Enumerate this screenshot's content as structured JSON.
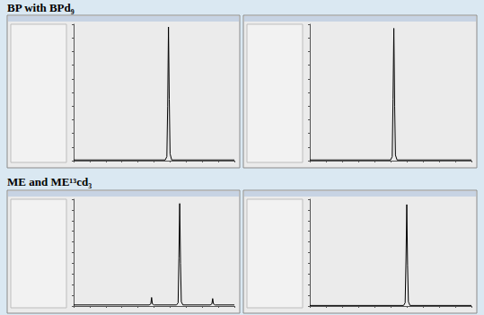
{
  "chart_data": [
    {
      "type": "line",
      "title": "BP with BPd₉",
      "color": "#000000",
      "grid": false,
      "tick_labels": false,
      "x": [
        0,
        5.7,
        5.8,
        5.85,
        5.9,
        5.95,
        6.0,
        6.1,
        10
      ],
      "values": [
        0.5,
        0.5,
        3,
        40,
        98,
        45,
        5,
        0.5,
        0.5
      ],
      "xlim": [
        0,
        10
      ],
      "xticks": [
        0,
        1,
        2,
        3,
        4,
        5,
        6,
        7,
        8,
        9,
        10
      ],
      "ylim": [
        0,
        100
      ],
      "yticks": [
        0,
        10,
        20,
        30,
        40,
        50,
        60,
        70,
        80,
        90,
        100
      ]
    },
    {
      "type": "line",
      "color": "#000000",
      "grid": false,
      "tick_labels": false,
      "x": [
        0,
        5.0,
        5.1,
        5.15,
        5.2,
        5.25,
        5.3,
        5.4,
        10
      ],
      "values": [
        0.5,
        0.5,
        3,
        45,
        97,
        40,
        4,
        0.5,
        0.5
      ],
      "xlim": [
        0,
        10
      ],
      "xticks": [
        0,
        1,
        2,
        3,
        4,
        5,
        6,
        7,
        8,
        9,
        10
      ],
      "ylim": [
        0,
        100
      ],
      "yticks": [
        0,
        10,
        20,
        30,
        40,
        50,
        60,
        70,
        80,
        90,
        100
      ]
    },
    {
      "type": "line",
      "title": "ME and ME¹³cd₃",
      "color": "#000000",
      "grid": false,
      "tick_labels": false,
      "x": [
        0,
        4.7,
        4.8,
        4.85,
        4.9,
        5.0,
        6.4,
        6.5,
        6.55,
        6.6,
        6.65,
        6.7,
        6.8,
        8.5,
        8.6,
        8.65,
        8.7,
        8.8,
        10
      ],
      "values": [
        1,
        1,
        2,
        8,
        2,
        1,
        1,
        3,
        45,
        96,
        40,
        4,
        1,
        1,
        2,
        7,
        2,
        1,
        1
      ],
      "xlim": [
        0,
        10
      ],
      "xticks": [
        0,
        1,
        2,
        3,
        4,
        5,
        6,
        7,
        8,
        9,
        10
      ],
      "ylim": [
        0,
        100
      ],
      "yticks": [
        0,
        10,
        20,
        30,
        40,
        50,
        60,
        70,
        80,
        90,
        100
      ]
    },
    {
      "type": "line",
      "color": "#000000",
      "grid": false,
      "tick_labels": false,
      "x": [
        0,
        5.8,
        5.9,
        5.95,
        6.0,
        6.05,
        6.1,
        6.2,
        10
      ],
      "values": [
        0.5,
        0.5,
        3,
        42,
        95,
        38,
        4,
        0.5,
        0.5
      ],
      "xlim": [
        0,
        10
      ],
      "xticks": [
        0,
        1,
        2,
        3,
        4,
        5,
        6,
        7,
        8,
        9,
        10
      ],
      "ylim": [
        0,
        100
      ],
      "yticks": [
        0,
        10,
        20,
        30,
        40,
        50,
        60,
        70,
        80,
        90,
        100
      ]
    }
  ]
}
